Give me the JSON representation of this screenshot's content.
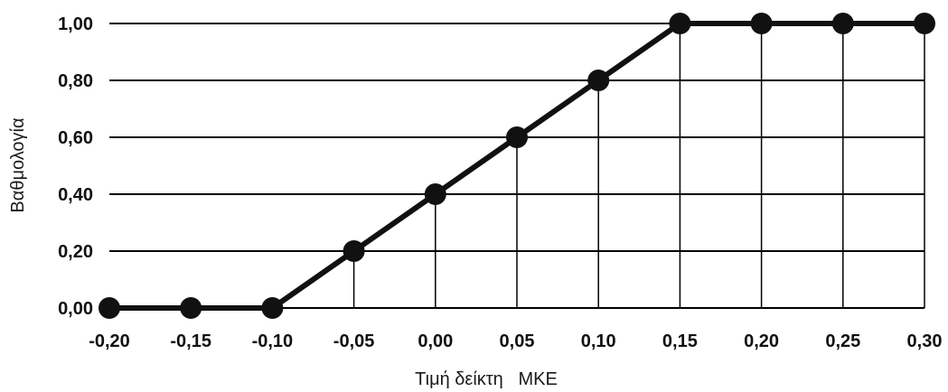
{
  "chart_data": {
    "type": "line",
    "title": "",
    "xlabel": "Τιμή δείκτη   ΜΚΕ",
    "ylabel": "Βαθμολογία",
    "x_tick_labels": [
      "-0,20",
      "-0,15",
      "-0,10",
      "-0,05",
      "0,00",
      "0,05",
      "0,10",
      "0,15",
      "0,20",
      "0,25",
      "0,30"
    ],
    "y_tick_labels": [
      "0,00",
      "0,20",
      "0,40",
      "0,60",
      "0,80",
      "1,00"
    ],
    "xlim": [
      -0.2,
      0.3
    ],
    "ylim": [
      0,
      1
    ],
    "grid": "horizontal",
    "drop_lines": true,
    "marker": "filled-circle",
    "colors": {
      "line": "#111111",
      "grid": "#000000",
      "marker": "#111111"
    },
    "series": [
      {
        "x": [
          -0.2,
          -0.15,
          -0.1,
          -0.05,
          0.0,
          0.05,
          0.1,
          0.15,
          0.2,
          0.25,
          0.3
        ],
        "y": [
          0.0,
          0.0,
          0.0,
          0.2,
          0.4,
          0.6,
          0.8,
          1.0,
          1.0,
          1.0,
          1.0
        ]
      }
    ]
  }
}
